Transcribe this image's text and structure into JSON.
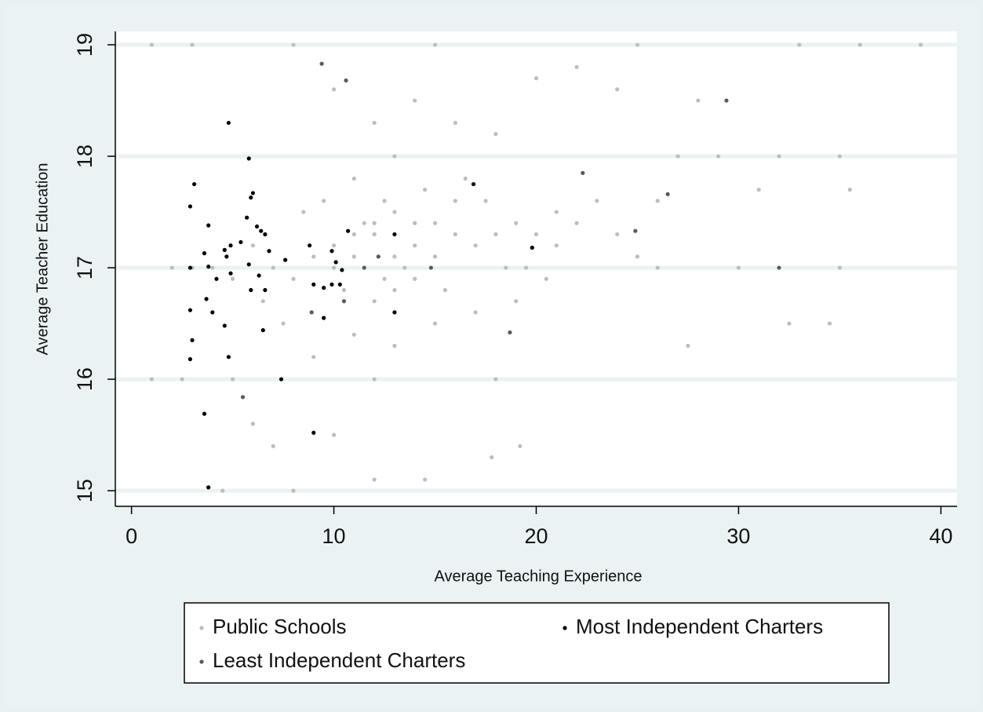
{
  "chart_data": {
    "type": "scatter",
    "x_label": "Average Teaching Experience",
    "y_label": "Average Teacher Education",
    "xlim": [
      -0.8,
      40.8
    ],
    "ylim": [
      14.86,
      19.12
    ],
    "xticks": [
      0,
      10,
      20,
      30,
      40
    ],
    "yticks": [
      15,
      16,
      17,
      18,
      19
    ],
    "grid": true,
    "legend": "bottom",
    "series": [
      {
        "name": "Public Schools",
        "color": "#bdbdbd",
        "x": [
          12,
          13,
          14,
          11,
          15,
          10,
          16,
          12.5,
          13.5,
          14.5,
          11.5,
          9,
          17,
          18,
          19,
          20,
          21,
          8,
          7,
          6,
          10.5,
          12,
          14,
          15.5,
          16.5,
          13,
          11,
          9.5,
          8.5,
          17.5,
          19.5,
          22,
          23,
          24,
          25,
          26,
          12,
          14,
          10,
          16,
          18,
          20,
          22,
          24,
          28,
          11,
          13,
          9,
          15,
          17,
          19,
          7.5,
          6.5,
          5,
          4,
          3,
          2,
          1,
          2.5,
          5,
          12,
          18,
          26,
          30,
          35,
          1,
          3,
          8,
          15,
          25,
          33,
          36,
          39,
          29,
          32,
          27,
          35,
          10,
          12,
          14.5,
          8,
          4.5,
          17.8,
          19.2,
          6,
          7,
          27.5,
          32.5,
          34.5,
          31,
          35.5,
          21,
          20.5,
          18.5,
          16,
          14,
          13,
          12,
          11,
          10,
          15,
          13,
          12.5
        ],
        "values": [
          17.3,
          17.5,
          17.2,
          17.1,
          17.4,
          17.0,
          17.3,
          17.6,
          17.0,
          17.7,
          17.4,
          17.1,
          17.2,
          17.3,
          17.4,
          17.3,
          17.5,
          16.9,
          17.0,
          17.2,
          16.8,
          16.7,
          16.9,
          16.8,
          17.8,
          18.0,
          17.8,
          17.6,
          17.5,
          17.6,
          17.0,
          17.4,
          17.6,
          17.3,
          17.1,
          17.6,
          18.3,
          18.5,
          18.6,
          18.3,
          18.2,
          18.7,
          18.8,
          18.6,
          18.5,
          16.4,
          16.3,
          16.2,
          16.5,
          16.6,
          16.7,
          16.5,
          16.7,
          16.9,
          17.0,
          17.0,
          17.0,
          16.0,
          16.0,
          16.0,
          16.0,
          16.0,
          17.0,
          17.0,
          17.0,
          19.0,
          19.0,
          19.0,
          19.0,
          19.0,
          19.0,
          19.0,
          19.0,
          18.0,
          18.0,
          18.0,
          18.0,
          15.5,
          15.1,
          15.1,
          15.0,
          15.0,
          15.3,
          15.4,
          15.6,
          15.4,
          16.3,
          16.5,
          16.5,
          17.7,
          17.7,
          17.2,
          16.9,
          17.0,
          17.6,
          17.4,
          17.1,
          17.4,
          17.3,
          17.2,
          17.1,
          16.8,
          16.9
        ]
      },
      {
        "name": "Most Independent Charters",
        "color": "#000000",
        "x": [
          2.9,
          3.1,
          4.8,
          5.8,
          6.0,
          5.9,
          5.7,
          6.2,
          6.4,
          6.6,
          3.8,
          3.6,
          3.8,
          4.9,
          4.6,
          4.7,
          5.4,
          5.8,
          6.8,
          7.6,
          8.8,
          9.9,
          10.1,
          10.7,
          4.2,
          4.9,
          6.3,
          5.9,
          6.6,
          9.5,
          9.9,
          10.3,
          10.4,
          9.0,
          3.7,
          2.9,
          4.0,
          4.6,
          6.5,
          3.0,
          2.9,
          4.8,
          7.4,
          3.6,
          9.0,
          3.8,
          9.5,
          13.0,
          13.0,
          16.9,
          19.8,
          2.9
        ],
        "values": [
          17.55,
          17.75,
          18.3,
          17.98,
          17.67,
          17.63,
          17.45,
          17.37,
          17.33,
          17.3,
          17.38,
          17.13,
          17.01,
          17.2,
          17.16,
          17.1,
          17.23,
          17.03,
          17.15,
          17.07,
          17.2,
          17.15,
          17.05,
          17.33,
          16.9,
          16.95,
          16.93,
          16.8,
          16.8,
          16.82,
          16.85,
          16.85,
          16.98,
          16.85,
          16.72,
          16.62,
          16.6,
          16.48,
          16.44,
          16.35,
          16.18,
          16.2,
          16.0,
          15.69,
          15.52,
          15.03,
          16.55,
          16.6,
          17.3,
          17.75,
          17.18,
          17.0
        ]
      },
      {
        "name": "Least Independent Charters",
        "color": "#5a5a5a",
        "x": [
          10.6,
          9.4,
          22.3,
          24.9,
          26.5,
          18.7,
          29.4,
          32,
          8.9,
          10.5,
          11.5,
          12.2,
          14.8,
          5.5
        ],
        "values": [
          18.68,
          18.83,
          17.85,
          17.33,
          17.66,
          16.42,
          18.5,
          17.0,
          16.6,
          16.7,
          17.0,
          17.1,
          17.0,
          15.84
        ]
      }
    ]
  }
}
